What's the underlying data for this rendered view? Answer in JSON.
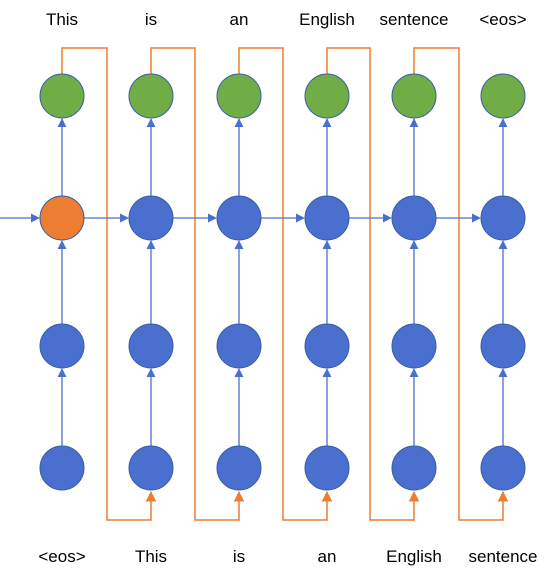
{
  "colors": {
    "blue_node": "#4a6fcf",
    "green_node": "#70ad47",
    "orange_node": "#ed7d31",
    "blue_edge": "#4a6fcf",
    "orange_edge": "#ed7d31",
    "node_stroke": "#3a5fa8"
  },
  "output_tokens": [
    "This",
    "is",
    "an",
    "English",
    "sentence",
    "<eos>"
  ],
  "input_tokens": [
    "<eos>",
    "This",
    "is",
    "an",
    "English",
    "sentence"
  ],
  "rows": [
    "output",
    "hidden",
    "hidden",
    "input"
  ],
  "highlighted_hidden_column": 0
}
